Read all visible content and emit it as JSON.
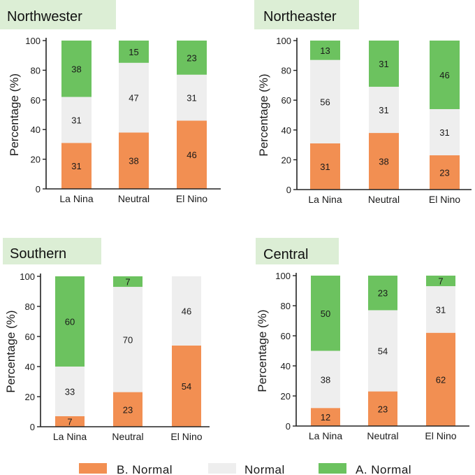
{
  "colors": {
    "below_normal": "#F28F52",
    "normal": "#EEEEEE",
    "above_normal": "#6CC25F",
    "title_bg": "#DCEED5",
    "axis": "#222222"
  },
  "legend": [
    {
      "label": "B. Normal",
      "color_key": "below_normal"
    },
    {
      "label": "Normal",
      "color_key": "normal"
    },
    {
      "label": "A. Normal",
      "color_key": "above_normal"
    }
  ],
  "chart_data": [
    {
      "type": "bar",
      "stacked": true,
      "title": "Northwester",
      "ylabel": "Percentage (%)",
      "ylim": [
        0,
        100
      ],
      "yticks": [
        0,
        20,
        40,
        60,
        80,
        100
      ],
      "categories": [
        "La Nina",
        "Neutral",
        "El Nino"
      ],
      "series": [
        {
          "name": "B. Normal",
          "values": [
            31,
            38,
            46
          ]
        },
        {
          "name": "Normal",
          "values": [
            31,
            47,
            31
          ]
        },
        {
          "name": "A. Normal",
          "values": [
            38,
            15,
            23
          ]
        }
      ]
    },
    {
      "type": "bar",
      "stacked": true,
      "title": "Northeaster",
      "ylabel": "Percentage (%)",
      "ylim": [
        0,
        100
      ],
      "yticks": [
        0,
        20,
        40,
        60,
        80,
        100
      ],
      "categories": [
        "La Nina",
        "Neutral",
        "El Nino"
      ],
      "series": [
        {
          "name": "B. Normal",
          "values": [
            31,
            38,
            23
          ]
        },
        {
          "name": "Normal",
          "values": [
            56,
            31,
            31
          ]
        },
        {
          "name": "A. Normal",
          "values": [
            13,
            31,
            46
          ]
        }
      ]
    },
    {
      "type": "bar",
      "stacked": true,
      "title": "Southern",
      "ylabel": "Percentage (%)",
      "ylim": [
        0,
        100
      ],
      "yticks": [
        0,
        20,
        40,
        60,
        80,
        100
      ],
      "categories": [
        "La Nina",
        "Neutral",
        "El Nino"
      ],
      "series": [
        {
          "name": "B. Normal",
          "values": [
            7,
            23,
            54
          ]
        },
        {
          "name": "Normal",
          "values": [
            33,
            70,
            46
          ]
        },
        {
          "name": "A. Normal",
          "values": [
            60,
            7,
            0
          ]
        }
      ]
    },
    {
      "type": "bar",
      "stacked": true,
      "title": "Central",
      "ylabel": "Percentage (%)",
      "ylim": [
        0,
        100
      ],
      "yticks": [
        0,
        20,
        40,
        60,
        80,
        100
      ],
      "categories": [
        "La Nina",
        "Neutral",
        "El Nino"
      ],
      "series": [
        {
          "name": "B. Normal",
          "values": [
            12,
            23,
            62
          ]
        },
        {
          "name": "Normal",
          "values": [
            38,
            54,
            31
          ]
        },
        {
          "name": "A. Normal",
          "values": [
            50,
            23,
            7
          ]
        }
      ]
    }
  ]
}
